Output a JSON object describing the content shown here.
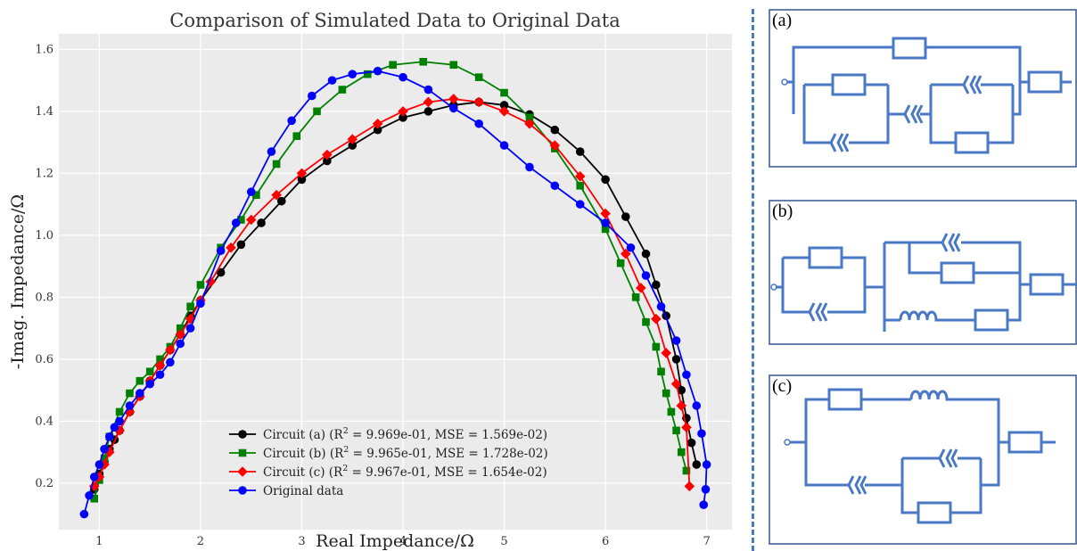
{
  "chart_data": {
    "type": "line",
    "title": "Comparison of Simulated Data to Original Data",
    "xlabel": "Real Impedance/Ω",
    "ylabel": "-Imag. Impedance/Ω",
    "xlim": [
      0.6,
      7.25
    ],
    "ylim": [
      0.05,
      1.65
    ],
    "xticks": [
      "1",
      "2",
      "3",
      "4",
      "5",
      "6",
      "7"
    ],
    "yticks": [
      "0.2",
      "0.4",
      "0.6",
      "0.8",
      "1.0",
      "1.2",
      "1.4",
      "1.6"
    ],
    "grid": true,
    "legend_position": "bottom-center",
    "series": [
      {
        "name": "Circuit (a) (R² = 9.969e-01, MSE = 1.569e-02)",
        "legend_parts": [
          "Circuit (a) (R",
          "2",
          " = 9.969e-01, MSE = 1.569e-02)"
        ],
        "color": "#000000",
        "marker": "circle",
        "x": [
          0.95,
          1.0,
          1.05,
          1.1,
          1.15,
          1.2,
          1.3,
          1.4,
          1.5,
          1.6,
          1.7,
          1.8,
          1.9,
          2.0,
          2.2,
          2.4,
          2.6,
          2.8,
          3.0,
          3.25,
          3.5,
          3.75,
          4.0,
          4.25,
          4.5,
          4.75,
          5.0,
          5.25,
          5.5,
          5.75,
          6.0,
          6.2,
          6.4,
          6.5,
          6.6,
          6.7,
          6.75,
          6.8,
          6.85,
          6.9
        ],
        "y": [
          0.18,
          0.23,
          0.27,
          0.31,
          0.34,
          0.37,
          0.43,
          0.48,
          0.53,
          0.58,
          0.63,
          0.68,
          0.74,
          0.79,
          0.88,
          0.97,
          1.04,
          1.11,
          1.18,
          1.24,
          1.29,
          1.34,
          1.38,
          1.4,
          1.42,
          1.43,
          1.42,
          1.39,
          1.34,
          1.27,
          1.18,
          1.06,
          0.94,
          0.84,
          0.74,
          0.6,
          0.5,
          0.41,
          0.33,
          0.26
        ]
      },
      {
        "name": "Circuit (b) (R² = 9.965e-01, MSE = 1.728e-02)",
        "legend_parts": [
          "Circuit (b) (R",
          "2",
          " = 9.965e-01, MSE = 1.728e-02)"
        ],
        "color": "#008000",
        "marker": "square",
        "x": [
          0.95,
          1.0,
          1.05,
          1.1,
          1.2,
          1.3,
          1.4,
          1.5,
          1.6,
          1.7,
          1.8,
          1.9,
          2.0,
          2.2,
          2.4,
          2.55,
          2.75,
          2.95,
          3.15,
          3.4,
          3.65,
          3.9,
          4.2,
          4.5,
          4.75,
          5.0,
          5.25,
          5.5,
          5.75,
          6.0,
          6.15,
          6.3,
          6.4,
          6.5,
          6.55,
          6.6,
          6.65,
          6.7,
          6.75,
          6.8
        ],
        "y": [
          0.15,
          0.21,
          0.28,
          0.35,
          0.43,
          0.49,
          0.53,
          0.56,
          0.6,
          0.64,
          0.7,
          0.77,
          0.84,
          0.96,
          1.05,
          1.13,
          1.23,
          1.32,
          1.4,
          1.47,
          1.52,
          1.55,
          1.56,
          1.55,
          1.51,
          1.46,
          1.38,
          1.28,
          1.16,
          1.02,
          0.91,
          0.8,
          0.72,
          0.64,
          0.56,
          0.49,
          0.43,
          0.37,
          0.3,
          0.24
        ]
      },
      {
        "name": "Circuit (c) (R² = 9.967e-01, MSE = 1.654e-02)",
        "legend_parts": [
          "Circuit (c) (R",
          "2",
          " = 9.967e-01, MSE = 1.654e-02)"
        ],
        "color": "#ff0000",
        "marker": "diamond",
        "x": [
          0.95,
          1.0,
          1.05,
          1.1,
          1.2,
          1.3,
          1.4,
          1.5,
          1.6,
          1.7,
          1.8,
          1.9,
          2.0,
          2.1,
          2.3,
          2.5,
          2.75,
          3.0,
          3.25,
          3.5,
          3.75,
          4.0,
          4.25,
          4.5,
          4.75,
          5.0,
          5.25,
          5.5,
          5.75,
          6.0,
          6.2,
          6.35,
          6.5,
          6.6,
          6.7,
          6.75,
          6.8,
          6.83
        ],
        "y": [
          0.19,
          0.22,
          0.26,
          0.3,
          0.37,
          0.43,
          0.48,
          0.53,
          0.58,
          0.63,
          0.68,
          0.73,
          0.79,
          0.85,
          0.96,
          1.05,
          1.13,
          1.2,
          1.26,
          1.31,
          1.36,
          1.4,
          1.43,
          1.44,
          1.43,
          1.4,
          1.36,
          1.29,
          1.19,
          1.07,
          0.94,
          0.83,
          0.73,
          0.62,
          0.52,
          0.45,
          0.38,
          0.19
        ]
      },
      {
        "name": "Original data",
        "legend_parts": [
          "Original data",
          "",
          ""
        ],
        "color": "#0000ff",
        "marker": "circle",
        "x": [
          0.85,
          0.9,
          0.95,
          1.0,
          1.05,
          1.1,
          1.15,
          1.2,
          1.3,
          1.4,
          1.5,
          1.6,
          1.7,
          1.8,
          1.9,
          2.0,
          2.2,
          2.35,
          2.5,
          2.7,
          2.9,
          3.1,
          3.3,
          3.5,
          3.75,
          4.0,
          4.25,
          4.5,
          4.75,
          5.0,
          5.25,
          5.5,
          5.75,
          6.0,
          6.25,
          6.4,
          6.55,
          6.7,
          6.8,
          6.9,
          6.95,
          7.0,
          6.99,
          6.97
        ],
        "y": [
          0.1,
          0.16,
          0.22,
          0.26,
          0.31,
          0.35,
          0.38,
          0.4,
          0.45,
          0.49,
          0.52,
          0.55,
          0.59,
          0.65,
          0.7,
          0.78,
          0.95,
          1.04,
          1.14,
          1.27,
          1.37,
          1.45,
          1.5,
          1.52,
          1.53,
          1.51,
          1.47,
          1.41,
          1.36,
          1.29,
          1.22,
          1.16,
          1.1,
          1.04,
          0.96,
          0.87,
          0.77,
          0.66,
          0.55,
          0.45,
          0.36,
          0.26,
          0.18,
          0.13
        ]
      }
    ]
  },
  "circuits": [
    {
      "label": "(a)"
    },
    {
      "label": "(b)"
    },
    {
      "label": "(c)"
    }
  ]
}
